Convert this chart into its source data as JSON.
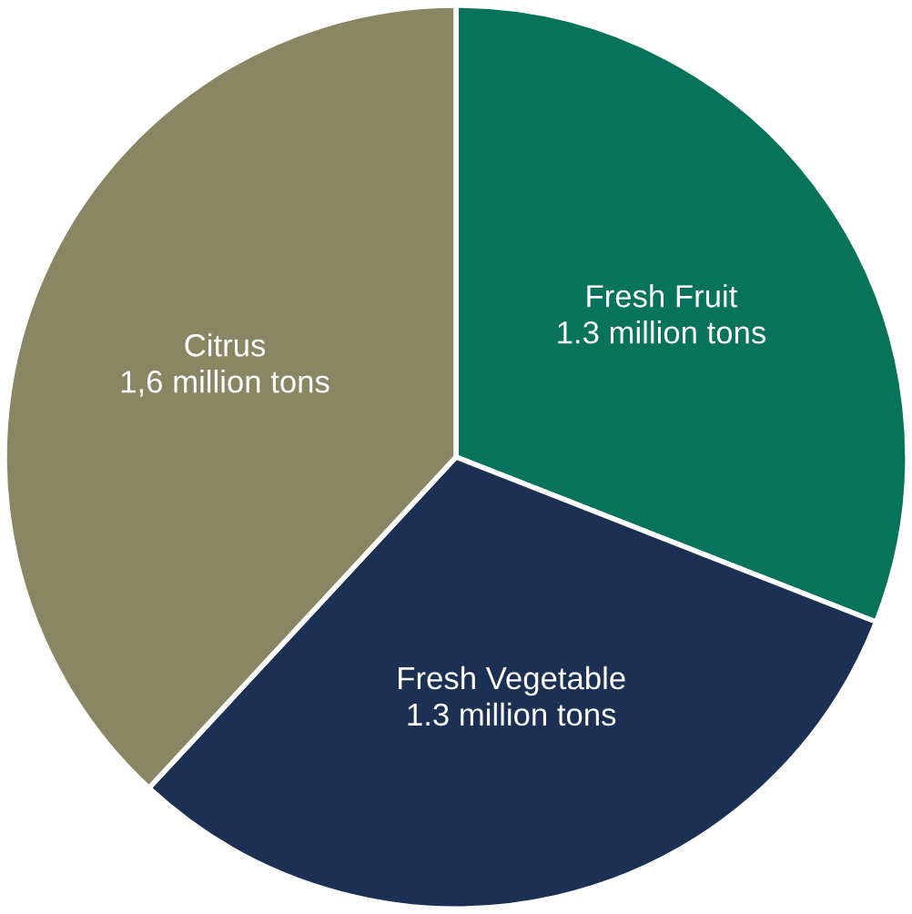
{
  "chart_data": {
    "type": "pie",
    "categories": [
      "Fresh Fruit",
      "Fresh Vegetable",
      "Citrus"
    ],
    "values": [
      1.3,
      1.3,
      1.6
    ],
    "value_labels": [
      "1.3 million tons",
      "1.3 million tons",
      "1,6 million tons"
    ],
    "colors": [
      "#06735a",
      "#1b3052",
      "#8a8663"
    ],
    "legend": false
  }
}
